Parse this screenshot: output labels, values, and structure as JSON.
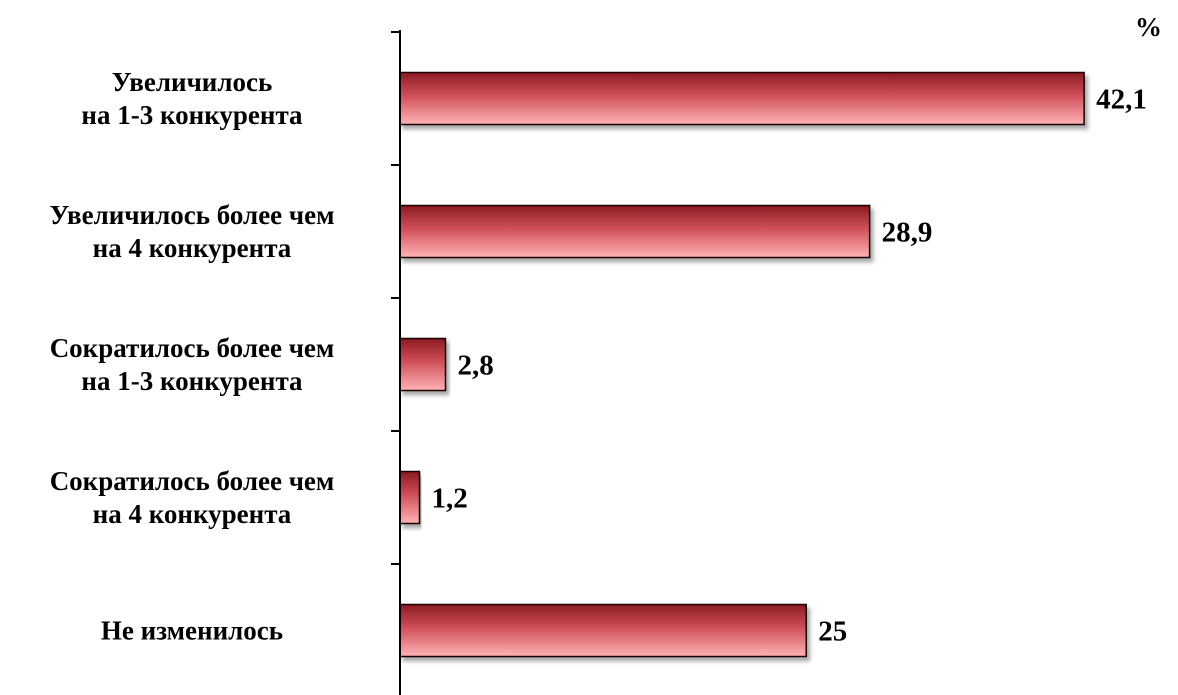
{
  "chart_data": {
    "type": "bar",
    "orientation": "horizontal",
    "unit_label": "%",
    "categories": [
      [
        "Увеличилось",
        "на 1-3 конкурента"
      ],
      [
        "Увеличилось более чем",
        "на 4 конкурента"
      ],
      [
        "Сократилось более чем",
        "на 1-3 конкурента"
      ],
      [
        "Сократилось более чем",
        "на 4 конкурента"
      ],
      [
        "Не изменилось"
      ]
    ],
    "values": [
      42.1,
      28.9,
      2.8,
      1.2,
      25
    ],
    "value_labels": [
      "42,1",
      "28,9",
      "2,8",
      "1,2",
      "25"
    ],
    "xlim": [
      0,
      48
    ],
    "grid": false,
    "legend": "none",
    "colors": {
      "bar_dark": "#8b1a22",
      "bar_mid": "#d0505a",
      "bar_light": "#ffb3b6",
      "axis": "#000000"
    }
  }
}
